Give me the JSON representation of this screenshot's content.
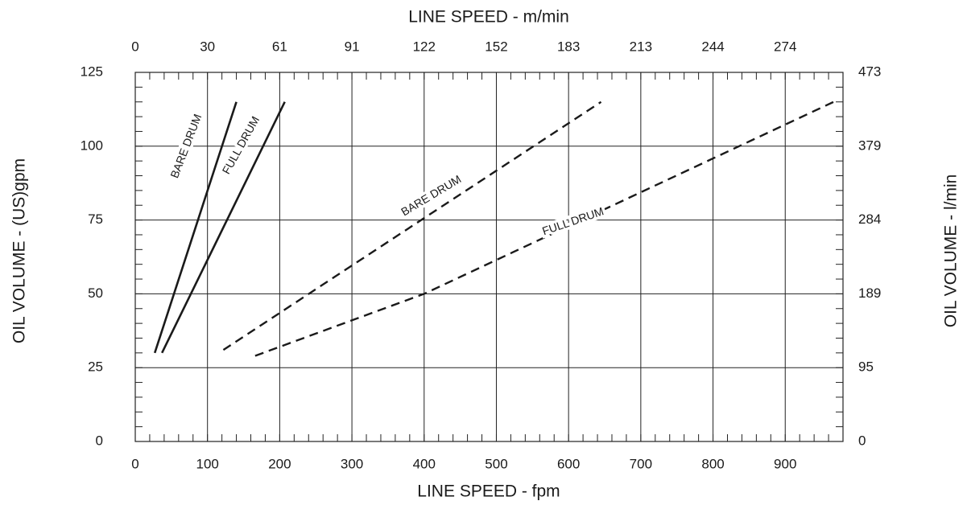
{
  "chart_data": {
    "type": "line",
    "title": "",
    "xlabel_bottom": "LINE SPEED - fpm",
    "xlabel_top": "LINE SPEED - m/min",
    "ylabel_left": "OIL VOLUME - (US)gpm",
    "ylabel_right": "OIL VOLUME - l/min",
    "xlim": [
      0,
      980
    ],
    "ylim": [
      0,
      125
    ],
    "grid": true,
    "x_ticks_bottom": [
      "0",
      "100",
      "200",
      "300",
      "400",
      "500",
      "600",
      "700",
      "800",
      "900"
    ],
    "x_ticks_top": [
      "0",
      "30",
      "61",
      "91",
      "122",
      "152",
      "183",
      "213",
      "244",
      "274"
    ],
    "y_ticks_left": [
      "0",
      "25",
      "50",
      "75",
      "100",
      "125"
    ],
    "y_ticks_right": [
      "0",
      "95",
      "189",
      "284",
      "379",
      "473"
    ],
    "series": [
      {
        "name": "BARE DRUM",
        "style": "solid",
        "color": "#1a1a1a",
        "x": [
          27,
          140
        ],
        "y": [
          30,
          115
        ]
      },
      {
        "name": "FULL DRUM",
        "style": "solid",
        "color": "#1a1a1a",
        "x": [
          37,
          207
        ],
        "y": [
          30,
          115
        ]
      },
      {
        "name": "BARE DRUM",
        "style": "dashed",
        "color": "#1a1a1a",
        "x": [
          122,
          645
        ],
        "y": [
          31,
          115
        ]
      },
      {
        "name": "FULL DRUM",
        "style": "dashed",
        "color": "#1a1a1a",
        "x": [
          166,
          400,
          967
        ],
        "y": [
          29,
          50,
          115
        ]
      }
    ]
  }
}
